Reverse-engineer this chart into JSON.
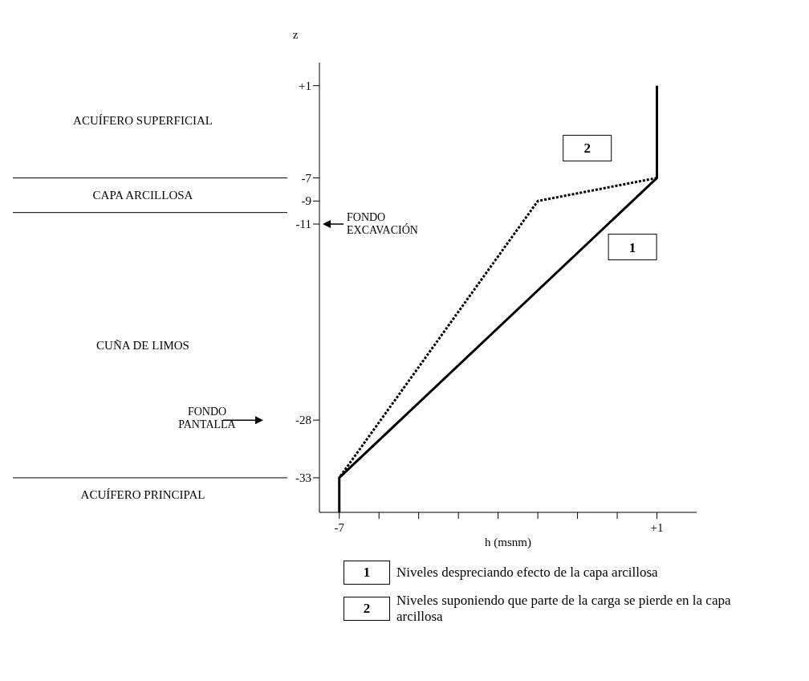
{
  "chart_data": {
    "type": "line",
    "xlabel": "h (msnm)",
    "ylabel": "z",
    "xlim": [
      -7.5,
      2
    ],
    "xticks": [
      {
        "value": -7,
        "label": "-7"
      },
      {
        "value": -6,
        "label": null
      },
      {
        "value": -5,
        "label": null
      },
      {
        "value": -4,
        "label": null
      },
      {
        "value": -3,
        "label": null
      },
      {
        "value": -2,
        "label": null
      },
      {
        "value": -1,
        "label": null
      },
      {
        "value": 0,
        "label": null
      },
      {
        "value": 1,
        "label": "+1"
      }
    ],
    "ylim": [
      -36,
      3
    ],
    "yticks": [
      {
        "value": 1,
        "label": "+1"
      },
      -7,
      -9,
      -11,
      -28,
      -33
    ],
    "series": [
      {
        "name": "Niveles despreciando efecto de la capa arcillosa",
        "color": "#000000",
        "x": [
          1,
          1,
          -7,
          -7
        ],
        "values": [
          1,
          -7,
          -33,
          -36
        ],
        "line_style": "solid"
      },
      {
        "name": "Niveles suponiendo que parte de la carga se pierde en la capa arcillosa",
        "color": "#000000",
        "x": [
          1,
          -2,
          -7
        ],
        "values": [
          -7,
          -9,
          -33
        ],
        "line_style": "dotted"
      }
    ],
    "annotations": [
      "ACUÍFERO SUPERFICIAL",
      "CAPA ARCILLOSA",
      "CUÑA DE LIMOS",
      "ACUÍFERO PRINCIPAL",
      "1",
      "2",
      "FONDO EXCAVACIÓN",
      "FONDO PANTALLA"
    ],
    "legend": "bottom",
    "grid": false,
    "marker": "none"
  }
}
